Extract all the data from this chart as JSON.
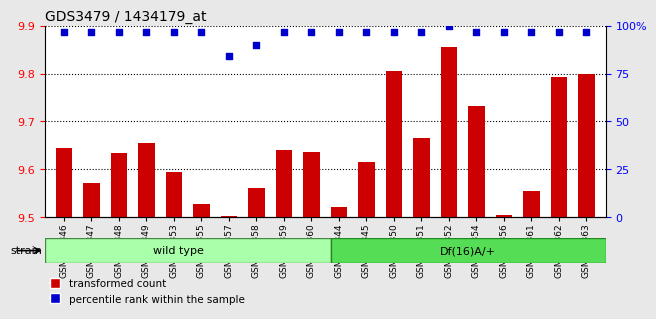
{
  "title": "GDS3479 / 1434179_at",
  "categories": [
    "GSM272346",
    "GSM272347",
    "GSM272348",
    "GSM272349",
    "GSM272353",
    "GSM272355",
    "GSM272357",
    "GSM272358",
    "GSM272359",
    "GSM272360",
    "GSM272344",
    "GSM272345",
    "GSM272350",
    "GSM272351",
    "GSM272352",
    "GSM272354",
    "GSM272356",
    "GSM272361",
    "GSM272362",
    "GSM272363"
  ],
  "bar_values": [
    9.645,
    9.572,
    9.633,
    9.655,
    9.595,
    9.527,
    9.503,
    9.56,
    9.641,
    9.635,
    9.52,
    9.614,
    9.805,
    9.665,
    9.855,
    9.733,
    9.505,
    9.555,
    9.793,
    9.8
  ],
  "percentile_values": [
    97,
    97,
    97,
    97,
    97,
    97,
    84,
    90,
    97,
    97,
    97,
    97,
    97,
    97,
    100,
    97,
    97,
    97,
    97,
    97
  ],
  "bar_color": "#cc0000",
  "percentile_color": "#0000cc",
  "ylim_left": [
    9.5,
    9.9
  ],
  "ylim_right": [
    0,
    100
  ],
  "yticks_left": [
    9.5,
    9.6,
    9.7,
    9.8,
    9.9
  ],
  "yticks_right": [
    0,
    25,
    50,
    75,
    100
  ],
  "grid_values": [
    9.6,
    9.7,
    9.8
  ],
  "group1_label": "wild type",
  "group1_count": 10,
  "group2_label": "Df(16)A/+",
  "group2_count": 10,
  "group_bar_color1": "#aaffaa",
  "group_bar_color2": "#55dd55",
  "strain_label": "strain",
  "legend_bar_label": "transformed count",
  "legend_pct_label": "percentile rank within the sample",
  "background_color": "#e8e8e8",
  "plot_bg_color": "#ffffff"
}
